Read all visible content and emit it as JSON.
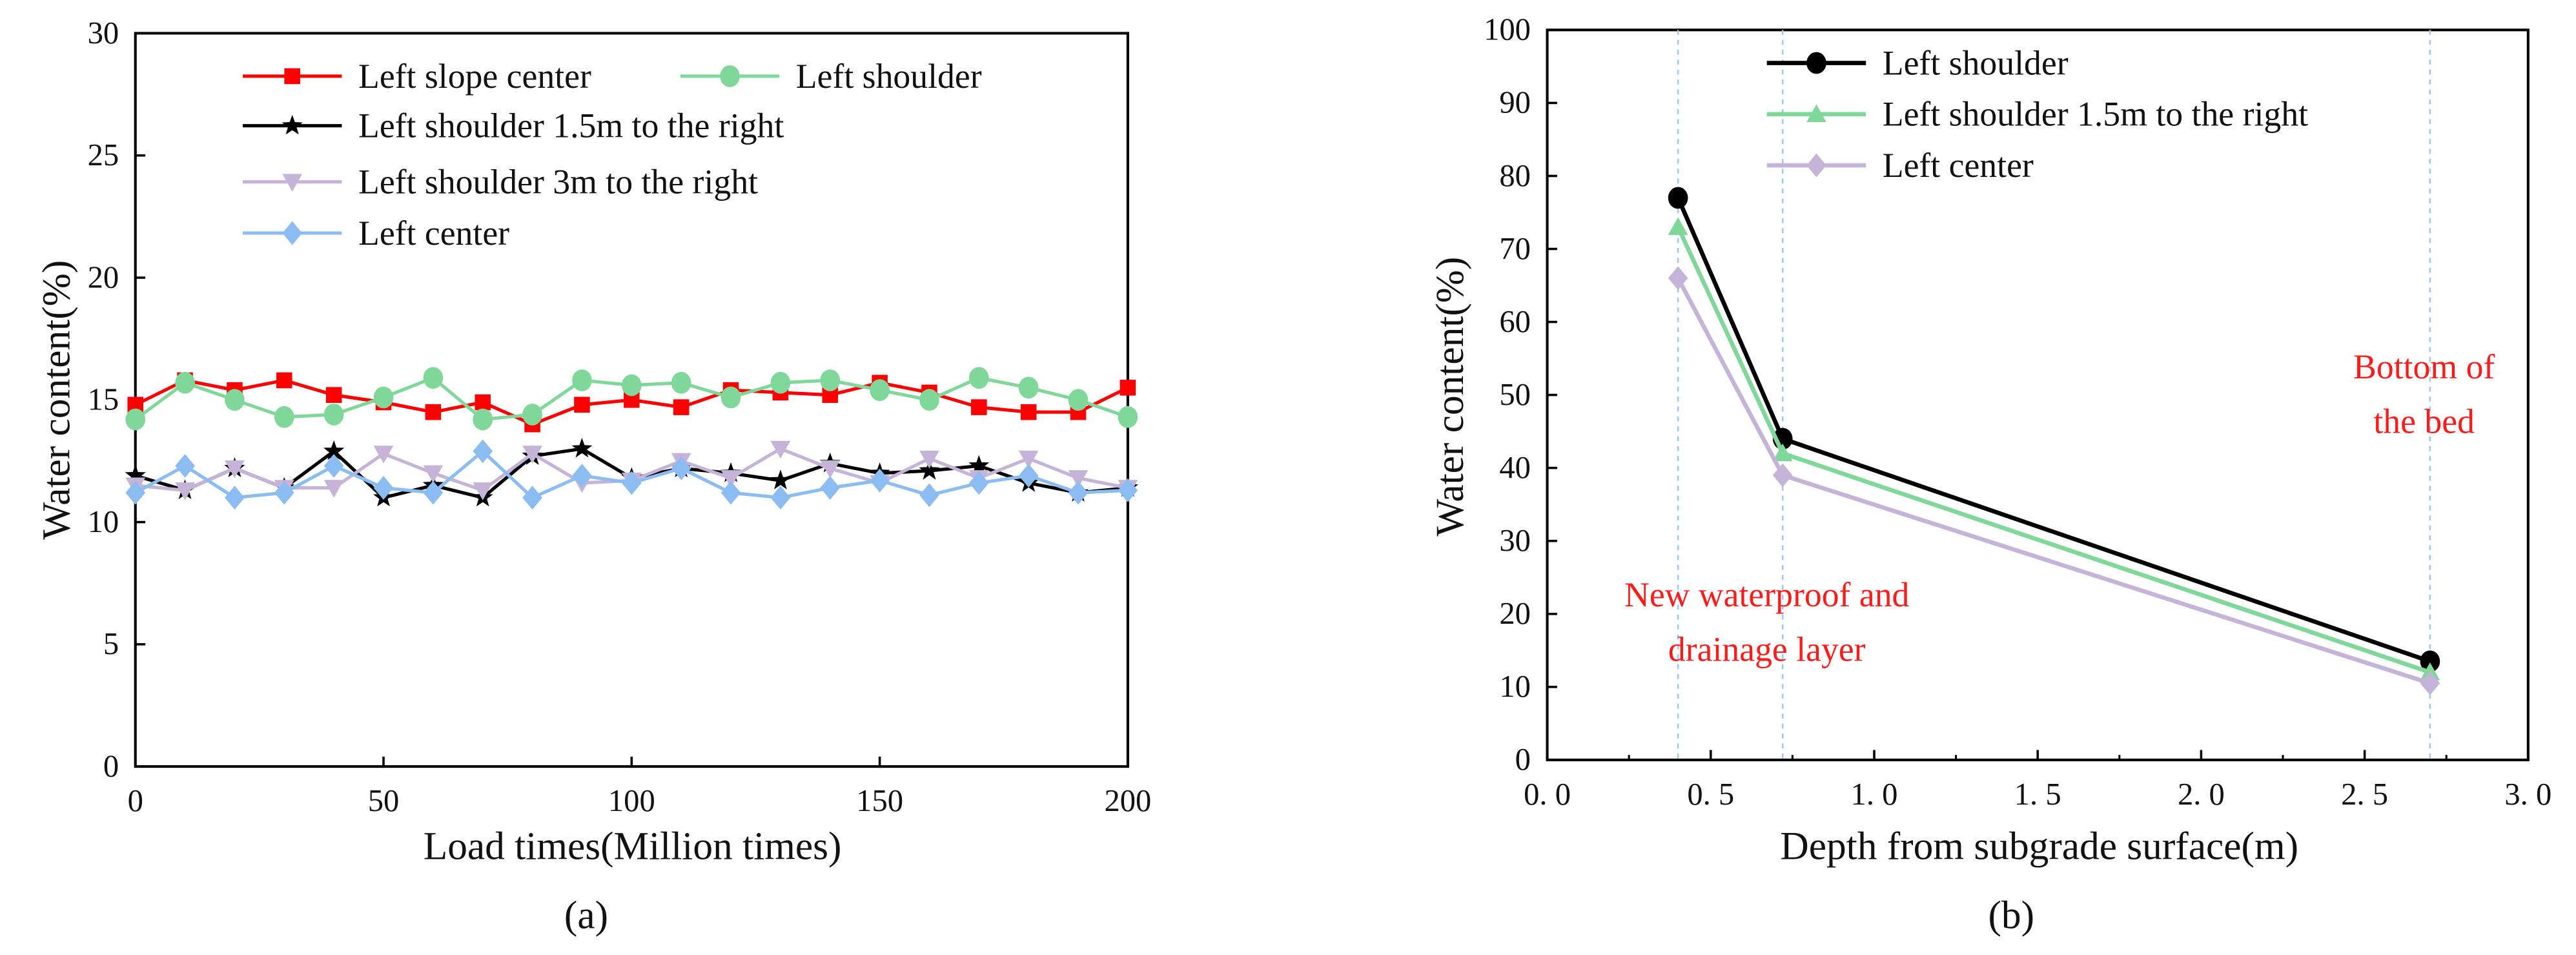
{
  "chart_data": [
    {
      "type": "line",
      "panel_label": "(a)",
      "xlabel": "Load times(Million times)",
      "ylabel": "Water content(%)",
      "xlim": [
        0,
        200
      ],
      "ylim": [
        0,
        30
      ],
      "xticks": [
        0,
        50,
        100,
        150,
        200
      ],
      "yticks": [
        0,
        5,
        10,
        15,
        20,
        25,
        30
      ],
      "grid": false,
      "legend_position": "top-left",
      "x": [
        0,
        10,
        20,
        30,
        40,
        50,
        60,
        70,
        80,
        90,
        100,
        110,
        120,
        130,
        140,
        150,
        160,
        170,
        180,
        190,
        200
      ],
      "series": [
        {
          "name": "Left slope center",
          "color": "#ff0000",
          "marker": "square",
          "values": [
            14.8,
            15.8,
            15.4,
            15.8,
            15.2,
            14.9,
            14.5,
            14.9,
            14.0,
            14.8,
            15.0,
            14.7,
            15.4,
            15.3,
            15.2,
            15.7,
            15.3,
            14.7,
            14.5,
            14.5,
            15.5
          ]
        },
        {
          "name": "Left shoulder",
          "color": "#7fd89a",
          "marker": "circle",
          "values": [
            14.2,
            15.7,
            15.0,
            14.3,
            14.4,
            15.1,
            15.9,
            14.2,
            14.4,
            15.8,
            15.6,
            15.7,
            15.1,
            15.7,
            15.8,
            15.4,
            15.0,
            15.9,
            15.5,
            15.0,
            14.3
          ]
        },
        {
          "name": "Left shoulder 1.5m to the right",
          "color": "#000000",
          "marker": "star",
          "values": [
            11.9,
            11.3,
            12.2,
            11.4,
            12.9,
            11.0,
            11.5,
            11.0,
            12.7,
            13.0,
            11.8,
            12.2,
            12.0,
            11.7,
            12.4,
            12.0,
            12.1,
            12.3,
            11.6,
            11.2,
            11.4
          ]
        },
        {
          "name": "Left shoulder 3m to the right",
          "color": "#c5b3d8",
          "marker": "triangle-down",
          "values": [
            11.5,
            11.3,
            12.2,
            11.4,
            11.4,
            12.8,
            12.0,
            11.3,
            12.8,
            11.6,
            11.7,
            12.5,
            11.8,
            13.0,
            12.2,
            11.6,
            12.6,
            11.8,
            12.6,
            11.8,
            11.4
          ]
        },
        {
          "name": "Left center",
          "color": "#8bbcf2",
          "marker": "diamond",
          "values": [
            11.2,
            12.3,
            11.0,
            11.2,
            12.3,
            11.4,
            11.2,
            12.9,
            11.0,
            11.9,
            11.6,
            12.2,
            11.2,
            11.0,
            11.4,
            11.7,
            11.1,
            11.6,
            11.9,
            11.2,
            11.3
          ]
        }
      ]
    },
    {
      "type": "line",
      "panel_label": "(b)",
      "xlabel": "Depth from subgrade surface(m)",
      "ylabel": "Water content(%)",
      "xlim": [
        0,
        3
      ],
      "ylim": [
        0,
        100
      ],
      "xticks": [
        "0. 0",
        "0. 5",
        "1. 0",
        "1. 5",
        "2. 0",
        "2. 5",
        "3. 0"
      ],
      "yticks": [
        0,
        10,
        20,
        30,
        40,
        50,
        60,
        70,
        80,
        90,
        100
      ],
      "grid": false,
      "legend_position": "top-center",
      "reference_lines_x": [
        0.4,
        0.72,
        2.7
      ],
      "annotations": [
        {
          "lines": [
            "Bottom of",
            "the bed"
          ]
        },
        {
          "lines": [
            "New waterproof and",
            "drainage layer"
          ]
        }
      ],
      "x": [
        0.4,
        0.72,
        2.7
      ],
      "series": [
        {
          "name": "Left shoulder",
          "color": "#000000",
          "marker": "circle",
          "values": [
            77,
            44,
            13.5
          ]
        },
        {
          "name": "Left shoulder 1.5m to the right",
          "color": "#7fd89a",
          "marker": "triangle-up",
          "values": [
            73,
            42,
            12
          ]
        },
        {
          "name": "Left center",
          "color": "#c5b3d8",
          "marker": "diamond",
          "values": [
            66,
            39,
            10.5
          ]
        }
      ]
    }
  ]
}
